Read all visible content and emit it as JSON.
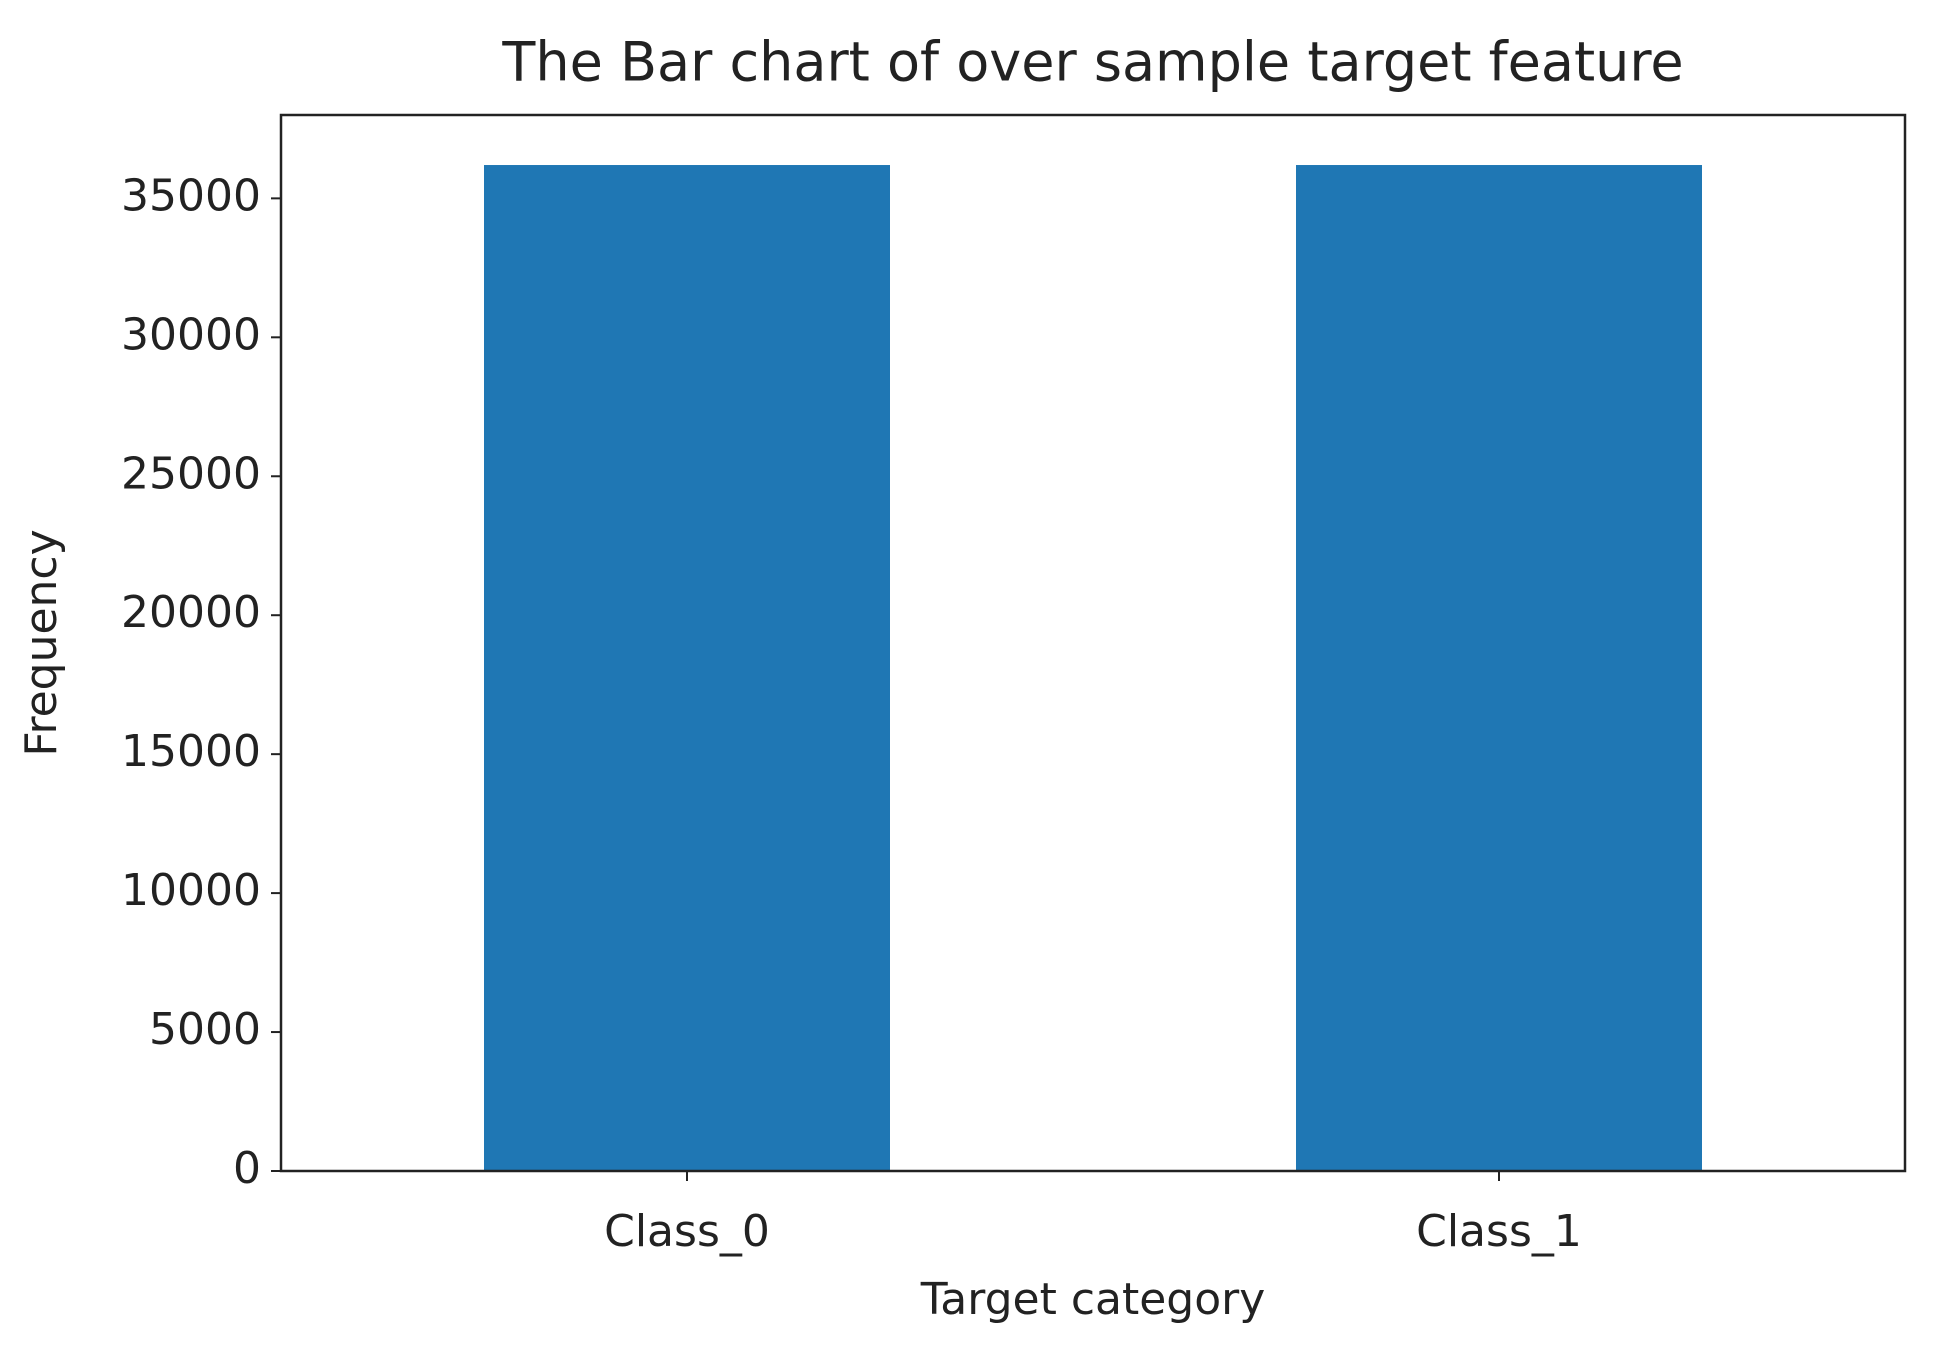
{
  "chart_data": {
    "type": "bar",
    "title": "The Bar chart of over sample target feature",
    "x_label": "Target category",
    "y_label": "Frequency",
    "categories": [
      "Class_0",
      "Class_1"
    ],
    "values": [
      36200,
      36200
    ],
    "color": "#1f77b4",
    "ylim": [
      0,
      38000
    ],
    "yticks": [
      0,
      5000,
      10000,
      15000,
      20000,
      25000,
      30000,
      35000
    ],
    "grid": false
  }
}
